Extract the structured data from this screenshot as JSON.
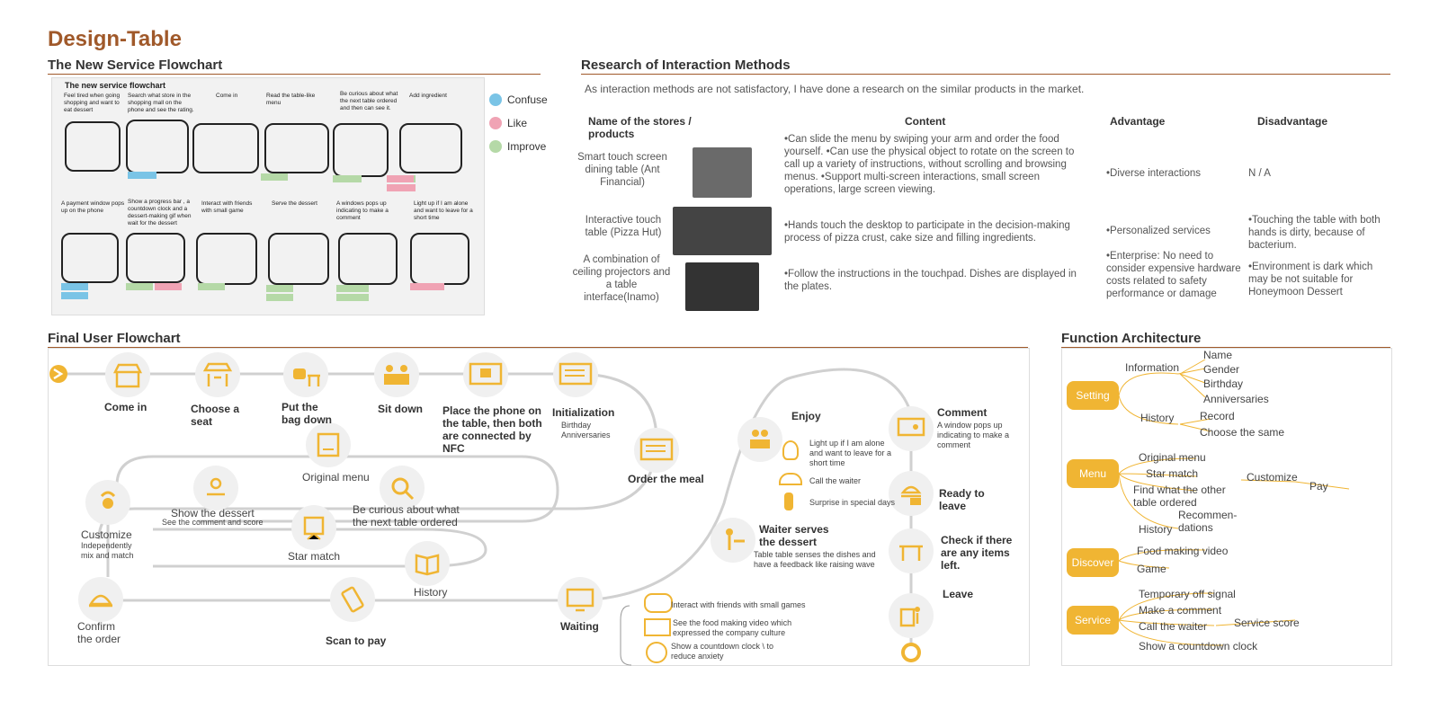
{
  "title": "Design-Table",
  "service_flowchart": {
    "heading": "The New Service Flowchart",
    "sketch_title": "The new service flowchart",
    "row1": [
      "Feel tired when going shopping and want to eat dessert",
      "Search what store in the shopping mall on the phone and see the rating.",
      "Come in",
      "Read the table-like menu",
      "Be curious about what the next table ordered and then can see it.",
      "Add ingredient"
    ],
    "row2": [
      "A payment window pops up on the phone",
      "Show a progress bar , a countdown clock and a dessert-making gif when wait for the dessert",
      "Interact with friends with small game",
      "Serve the dessert",
      "A windows pops up indicating to make a comment",
      "Light up if I am alone and want to leave for a short time"
    ],
    "legend": [
      {
        "label": "Confuse",
        "color": "#7ac4e6"
      },
      {
        "label": "Like",
        "color": "#f0a3b4"
      },
      {
        "label": "Improve",
        "color": "#b5d9a7"
      }
    ]
  },
  "research": {
    "heading": "Research of Interaction Methods",
    "intro": "As interaction methods are not satisfactory, I have done a research on  the similar products in the market.",
    "headers": {
      "name": "Name of the stores / products",
      "content": "Content",
      "advantage": "Advantage",
      "disadvantage": "Disadvantage"
    },
    "rows": [
      {
        "name": "Smart touch screen dining table (Ant Financial)",
        "content": "•Can slide the menu by swiping your arm and order the food yourself. •Can use the physical object to rotate on the screen to call up a variety of instructions, without scrolling and browsing menus. •Support multi-screen interactions, small screen operations, large screen viewing.",
        "advantage": "•Diverse interactions",
        "disadvantage": "N / A"
      },
      {
        "name": "Interactive touch table (Pizza Hut)",
        "content": "•Hands touch the desktop to participate in the decision-making process of pizza crust, cake size and filling ingredients.",
        "advantage": "•Personalized services",
        "disadvantage": "•Touching the table with both hands is dirty, because of bacterium."
      },
      {
        "name": "A combination of ceiling projectors and a table interface(Inamo)",
        "content": "•Follow the instructions in the touchpad. Dishes are displayed in the plates.",
        "advantage": "•Enterprise: No need to consider expensive hardware costs related to safety performance or damage",
        "disadvantage": "•Environment is dark which may be not suitable for Honeymoon Dessert"
      }
    ]
  },
  "final_flowchart": {
    "heading": "Final User Flowchart",
    "come_in": "Come in",
    "choose_seat": "Choose a seat",
    "put_bag": "Put the bag down",
    "sit_down": "Sit down",
    "place_phone": "Place the phone on the table, then both are connected by NFC",
    "initialization": "Initialization",
    "init_sub": "Birthday Anniversaries",
    "order_meal": "Order the meal",
    "original_menu": "Original menu",
    "show_dessert": "Show the dessert",
    "show_dessert_sub": "See the comment and score",
    "be_curious": "Be curious about what the next table ordered",
    "customize": "Customize",
    "customize_sub": "Independently mix and match",
    "star_match": "Star match",
    "history": "History",
    "confirm": "Confirm the order",
    "scan_pay": "Scan to pay",
    "waiting": "Waiting",
    "wait_items": [
      "Interact with friends with small games",
      "See the food making video which expressed the company culture",
      "Show a countdown clock \\ to reduce anxiety"
    ],
    "enjoy": "Enjoy",
    "enjoy_items": [
      "Light up if I am alone and want to leave for a short time",
      "Call the waiter",
      "Surprise in special days"
    ],
    "waiter_serves": "Waiter serves the dessert",
    "waiter_sub": "Table  table senses the dishes  and have a feedback like raising wave",
    "comment": "Comment",
    "comment_sub": "A window pops up indicating to make a comment",
    "ready": "Ready to leave",
    "check": "Check if there are any items left.",
    "leave": "Leave"
  },
  "function_arch": {
    "heading": "Function Architecture",
    "groups": [
      {
        "name": "Setting",
        "items": [
          "Information",
          "Name",
          "Gender",
          "Birthday",
          "Anniversaries",
          "History",
          "Record",
          "Choose the same"
        ]
      },
      {
        "name": "Menu",
        "items": [
          "Original menu",
          "Star match",
          "Find what the other table ordered",
          "History",
          "Recommen-dations",
          "Customize",
          "Pay"
        ]
      },
      {
        "name": "Discover",
        "items": [
          "Food making video",
          "Game"
        ]
      },
      {
        "name": "Service",
        "items": [
          "Temporary off signal",
          "Make a comment",
          "Call the waiter",
          "Service score",
          "Show a countdown clock"
        ]
      }
    ]
  }
}
